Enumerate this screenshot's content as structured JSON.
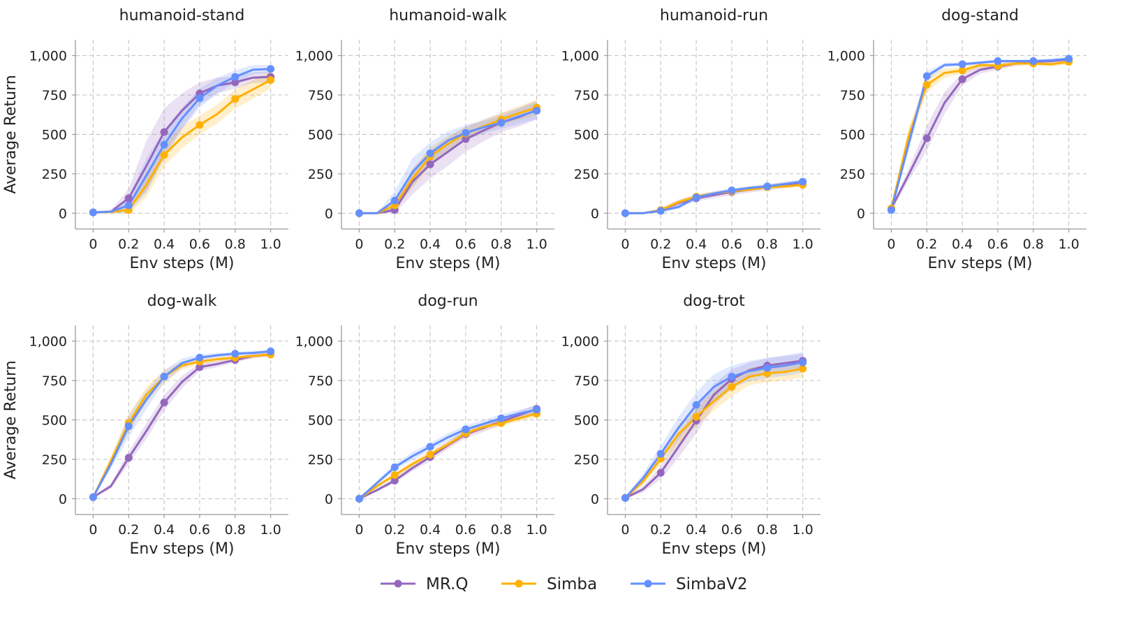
{
  "figure": {
    "legend_position": "bottom-center"
  },
  "series_styles": [
    {
      "name": "MR.Q",
      "color": "#9467bd"
    },
    {
      "name": "Simba",
      "color": "#ffb000"
    },
    {
      "name": "SimbaV2",
      "color": "#648fff"
    }
  ],
  "chart_data": [
    {
      "type": "line",
      "title": "humanoid-stand",
      "xlabel": "Env steps (M)",
      "ylabel": "Average Return",
      "xlim": [
        -0.1,
        1.1
      ],
      "ylim": [
        -100,
        1100
      ],
      "xticks": [
        0,
        0.2,
        0.4,
        0.6,
        0.8,
        1.0
      ],
      "xtick_labels": [
        "0",
        "0.2",
        "0.4",
        "0.6",
        "0.8",
        "1.0"
      ],
      "yticks": [
        0,
        250,
        500,
        750,
        1000
      ],
      "ytick_labels": [
        "0",
        "250",
        "500",
        "750",
        "1,000"
      ],
      "x": [
        0,
        0.1,
        0.2,
        0.3,
        0.4,
        0.5,
        0.6,
        0.7,
        0.8,
        0.9,
        1.0
      ],
      "marker_every": 2,
      "series": [
        {
          "name": "MR.Q",
          "values": [
            5,
            10,
            95,
            300,
            515,
            650,
            760,
            810,
            830,
            860,
            865
          ],
          "band": [
            5,
            8,
            60,
            160,
            150,
            110,
            70,
            50,
            40,
            35,
            35
          ]
        },
        {
          "name": "Simba",
          "values": [
            5,
            8,
            20,
            180,
            370,
            480,
            560,
            630,
            725,
            785,
            845
          ],
          "band": [
            5,
            8,
            25,
            80,
            70,
            70,
            60,
            60,
            60,
            60,
            55
          ]
        },
        {
          "name": "SimbaV2",
          "values": [
            5,
            10,
            50,
            240,
            435,
            600,
            730,
            810,
            865,
            910,
            915
          ],
          "band": [
            5,
            8,
            50,
            110,
            90,
            70,
            60,
            50,
            40,
            30,
            25
          ]
        }
      ]
    },
    {
      "type": "line",
      "title": "humanoid-walk",
      "xlabel": "Env steps (M)",
      "ylabel": "",
      "xlim": [
        -0.1,
        1.1
      ],
      "ylim": [
        -100,
        1100
      ],
      "xticks": [
        0,
        0.2,
        0.4,
        0.6,
        0.8,
        1.0
      ],
      "xtick_labels": [
        "0",
        "0.2",
        "0.4",
        "0.6",
        "0.8",
        "1.0"
      ],
      "yticks": [
        0,
        250,
        500,
        750,
        1000
      ],
      "ytick_labels": [
        "0",
        "250",
        "500",
        "750",
        "1,000"
      ],
      "x": [
        0,
        0.1,
        0.2,
        0.3,
        0.4,
        0.5,
        0.6,
        0.7,
        0.8,
        0.9,
        1.0
      ],
      "marker_every": 2,
      "series": [
        {
          "name": "MR.Q",
          "values": [
            0,
            0,
            20,
            200,
            310,
            390,
            470,
            525,
            575,
            610,
            655
          ],
          "band": [
            0,
            2,
            20,
            80,
            90,
            90,
            80,
            70,
            60,
            60,
            60
          ]
        },
        {
          "name": "Simba",
          "values": [
            0,
            0,
            50,
            220,
            360,
            440,
            505,
            550,
            595,
            635,
            670
          ],
          "band": [
            0,
            2,
            30,
            60,
            60,
            50,
            40,
            40,
            40,
            45,
            50
          ]
        },
        {
          "name": "SimbaV2",
          "values": [
            0,
            0,
            80,
            260,
            380,
            460,
            510,
            545,
            575,
            615,
            650
          ],
          "band": [
            0,
            2,
            60,
            90,
            70,
            60,
            50,
            40,
            40,
            50,
            55
          ]
        }
      ]
    },
    {
      "type": "line",
      "title": "humanoid-run",
      "xlabel": "Env steps (M)",
      "ylabel": "",
      "xlim": [
        -0.1,
        1.1
      ],
      "ylim": [
        -100,
        1100
      ],
      "xticks": [
        0,
        0.2,
        0.4,
        0.6,
        0.8,
        1.0
      ],
      "xtick_labels": [
        "0",
        "0.2",
        "0.4",
        "0.6",
        "0.8",
        "1.0"
      ],
      "yticks": [
        0,
        250,
        500,
        750,
        1000
      ],
      "ytick_labels": [
        "0",
        "250",
        "500",
        "750",
        "1,000"
      ],
      "x": [
        0,
        0.1,
        0.2,
        0.3,
        0.4,
        0.5,
        0.6,
        0.7,
        0.8,
        0.9,
        1.0
      ],
      "marker_every": 2,
      "series": [
        {
          "name": "MR.Q",
          "values": [
            0,
            0,
            20,
            65,
            95,
            115,
            135,
            150,
            165,
            180,
            195
          ],
          "band": [
            0,
            2,
            10,
            20,
            20,
            20,
            20,
            20,
            20,
            20,
            20
          ]
        },
        {
          "name": "Simba",
          "values": [
            0,
            0,
            20,
            70,
            105,
            125,
            140,
            150,
            165,
            170,
            180
          ],
          "band": [
            0,
            2,
            10,
            15,
            15,
            12,
            12,
            12,
            12,
            12,
            12
          ]
        },
        {
          "name": "SimbaV2",
          "values": [
            0,
            0,
            15,
            40,
            100,
            125,
            145,
            160,
            170,
            185,
            200
          ],
          "band": [
            0,
            2,
            10,
            15,
            15,
            15,
            12,
            12,
            12,
            12,
            12
          ]
        }
      ]
    },
    {
      "type": "line",
      "title": "dog-stand",
      "xlabel": "Env steps (M)",
      "ylabel": "",
      "xlim": [
        -0.1,
        1.1
      ],
      "ylim": [
        -100,
        1100
      ],
      "xticks": [
        0,
        0.2,
        0.4,
        0.6,
        0.8,
        1.0
      ],
      "xtick_labels": [
        "0",
        "0.2",
        "0.4",
        "0.6",
        "0.8",
        "1.0"
      ],
      "yticks": [
        0,
        250,
        500,
        750,
        1000
      ],
      "ytick_labels": [
        "0",
        "250",
        "500",
        "750",
        "1,000"
      ],
      "x": [
        0,
        0.1,
        0.2,
        0.3,
        0.4,
        0.5,
        0.6,
        0.7,
        0.8,
        0.9,
        1.0
      ],
      "marker_every": 2,
      "series": [
        {
          "name": "MR.Q",
          "values": [
            30,
            250,
            475,
            700,
            850,
            910,
            930,
            950,
            960,
            965,
            975
          ],
          "band": [
            10,
            40,
            80,
            70,
            40,
            25,
            20,
            15,
            12,
            12,
            10
          ]
        },
        {
          "name": "Simba",
          "values": [
            30,
            500,
            815,
            890,
            905,
            940,
            935,
            950,
            950,
            945,
            960
          ],
          "band": [
            10,
            50,
            50,
            30,
            20,
            20,
            20,
            15,
            15,
            15,
            15
          ]
        },
        {
          "name": "SimbaV2",
          "values": [
            20,
            450,
            870,
            940,
            945,
            955,
            965,
            965,
            965,
            970,
            980
          ],
          "band": [
            10,
            50,
            30,
            15,
            12,
            10,
            10,
            10,
            10,
            10,
            10
          ]
        }
      ]
    },
    {
      "type": "line",
      "title": "dog-walk",
      "xlabel": "Env steps (M)",
      "ylabel": "Average Return",
      "xlim": [
        -0.1,
        1.1
      ],
      "ylim": [
        -100,
        1100
      ],
      "xticks": [
        0,
        0.2,
        0.4,
        0.6,
        0.8,
        1.0
      ],
      "xtick_labels": [
        "0",
        "0.2",
        "0.4",
        "0.6",
        "0.8",
        "1.0"
      ],
      "yticks": [
        0,
        250,
        500,
        750,
        1000
      ],
      "ytick_labels": [
        "0",
        "250",
        "500",
        "750",
        "1,000"
      ],
      "x": [
        0,
        0.1,
        0.2,
        0.3,
        0.4,
        0.5,
        0.6,
        0.7,
        0.8,
        0.9,
        1.0
      ],
      "marker_every": 2,
      "series": [
        {
          "name": "MR.Q",
          "values": [
            10,
            80,
            260,
            430,
            610,
            740,
            835,
            855,
            880,
            905,
            915
          ],
          "band": [
            5,
            15,
            40,
            50,
            50,
            40,
            25,
            20,
            15,
            15,
            12
          ]
        },
        {
          "name": "Simba",
          "values": [
            10,
            240,
            480,
            660,
            775,
            845,
            870,
            885,
            895,
            905,
            915
          ],
          "band": [
            5,
            30,
            60,
            50,
            40,
            25,
            20,
            15,
            15,
            12,
            12
          ]
        },
        {
          "name": "SimbaV2",
          "values": [
            10,
            220,
            460,
            630,
            775,
            860,
            895,
            910,
            920,
            925,
            935
          ],
          "band": [
            5,
            30,
            70,
            60,
            40,
            30,
            20,
            15,
            12,
            12,
            10
          ]
        }
      ]
    },
    {
      "type": "line",
      "title": "dog-run",
      "xlabel": "Env steps (M)",
      "ylabel": "",
      "xlim": [
        -0.1,
        1.1
      ],
      "ylim": [
        -100,
        1100
      ],
      "xticks": [
        0,
        0.2,
        0.4,
        0.6,
        0.8,
        1.0
      ],
      "xtick_labels": [
        "0",
        "0.2",
        "0.4",
        "0.6",
        "0.8",
        "1.0"
      ],
      "yticks": [
        0,
        250,
        500,
        750,
        1000
      ],
      "ytick_labels": [
        "0",
        "250",
        "500",
        "750",
        "1,000"
      ],
      "x": [
        0,
        0.1,
        0.2,
        0.3,
        0.4,
        0.5,
        0.6,
        0.7,
        0.8,
        0.9,
        1.0
      ],
      "marker_every": 2,
      "series": [
        {
          "name": "MR.Q",
          "values": [
            0,
            55,
            115,
            195,
            265,
            340,
            410,
            450,
            490,
            530,
            570
          ],
          "band": [
            0,
            10,
            15,
            20,
            25,
            25,
            25,
            25,
            25,
            25,
            30
          ]
        },
        {
          "name": "Simba",
          "values": [
            0,
            80,
            150,
            220,
            280,
            345,
            415,
            455,
            480,
            510,
            540
          ],
          "band": [
            0,
            10,
            15,
            20,
            20,
            20,
            20,
            20,
            20,
            20,
            25
          ]
        },
        {
          "name": "SimbaV2",
          "values": [
            0,
            100,
            200,
            270,
            330,
            390,
            440,
            475,
            510,
            540,
            565
          ],
          "band": [
            0,
            15,
            20,
            25,
            25,
            25,
            25,
            25,
            25,
            25,
            25
          ]
        }
      ]
    },
    {
      "type": "line",
      "title": "dog-trot",
      "xlabel": "Env steps (M)",
      "ylabel": "",
      "xlim": [
        -0.1,
        1.1
      ],
      "ylim": [
        -100,
        1100
      ],
      "xticks": [
        0,
        0.2,
        0.4,
        0.6,
        0.8,
        1.0
      ],
      "xtick_labels": [
        "0",
        "0.2",
        "0.4",
        "0.6",
        "0.8",
        "1.0"
      ],
      "yticks": [
        0,
        250,
        500,
        750,
        1000
      ],
      "ytick_labels": [
        "0",
        "250",
        "500",
        "750",
        "1,000"
      ],
      "x": [
        0,
        0.1,
        0.2,
        0.3,
        0.4,
        0.5,
        0.6,
        0.7,
        0.8,
        0.9,
        1.0
      ],
      "marker_every": 2,
      "series": [
        {
          "name": "MR.Q",
          "values": [
            5,
            60,
            165,
            330,
            495,
            660,
            760,
            815,
            845,
            860,
            875
          ],
          "band": [
            5,
            20,
            40,
            70,
            80,
            70,
            60,
            50,
            45,
            45,
            45
          ]
        },
        {
          "name": "Simba",
          "values": [
            5,
            110,
            255,
            410,
            520,
            620,
            710,
            775,
            795,
            805,
            825
          ],
          "band": [
            5,
            25,
            40,
            60,
            60,
            60,
            60,
            55,
            55,
            55,
            55
          ]
        },
        {
          "name": "SimbaV2",
          "values": [
            5,
            130,
            285,
            450,
            595,
            710,
            775,
            810,
            830,
            845,
            865
          ],
          "band": [
            5,
            30,
            50,
            70,
            80,
            80,
            70,
            65,
            65,
            65,
            65
          ]
        }
      ]
    }
  ]
}
